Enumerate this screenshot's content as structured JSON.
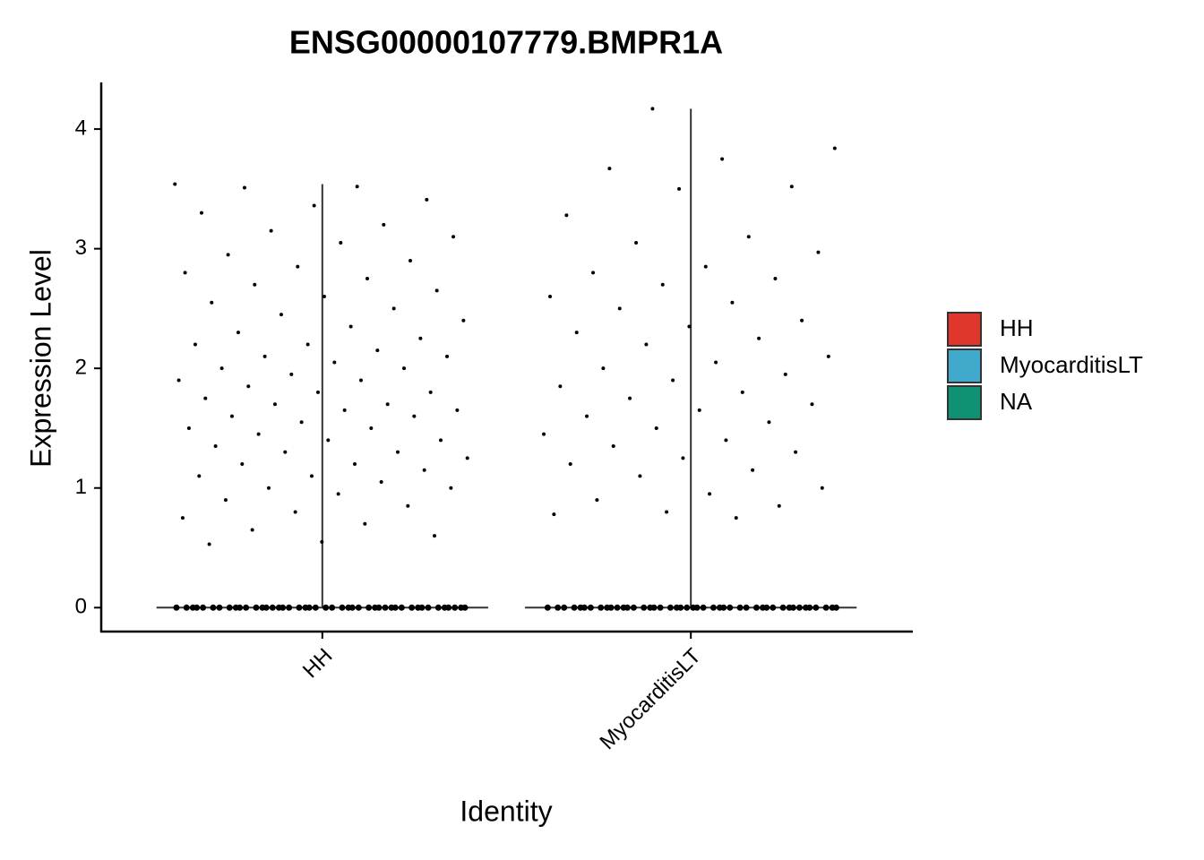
{
  "chart_data": {
    "type": "violin",
    "title": "ENSG00000107779.BMPR1A",
    "x_label": "Identity",
    "y_label": "Expression Level",
    "categories": [
      "HH",
      "MyocarditisLT"
    ],
    "groups": [
      {
        "name": "HH",
        "values": [
          3.54,
          3.52,
          3.51,
          3.41,
          3.36,
          3.3,
          3.2,
          3.15,
          3.1,
          3.05,
          2.95,
          2.9,
          2.85,
          2.8,
          2.75,
          2.7,
          2.65,
          2.6,
          2.55,
          2.5,
          2.45,
          2.4,
          2.35,
          2.3,
          2.25,
          2.2,
          2.2,
          2.15,
          2.1,
          2.1,
          2.05,
          2.0,
          2.0,
          1.95,
          1.9,
          1.9,
          1.85,
          1.8,
          1.8,
          1.75,
          1.7,
          1.7,
          1.65,
          1.65,
          1.6,
          1.6,
          1.55,
          1.5,
          1.5,
          1.45,
          1.4,
          1.4,
          1.35,
          1.3,
          1.3,
          1.25,
          1.2,
          1.2,
          1.15,
          1.1,
          1.1,
          1.05,
          1.0,
          1.0,
          0.95,
          0.9,
          0.85,
          0.8,
          0.75,
          0.7,
          0.65,
          0.6,
          0.55,
          0.53,
          0,
          0,
          0,
          0,
          0,
          0,
          0,
          0,
          0,
          0,
          0,
          0,
          0,
          0,
          0,
          0,
          0,
          0,
          0,
          0,
          0,
          0,
          0,
          0,
          0,
          0,
          0,
          0,
          0,
          0,
          0,
          0,
          0,
          0,
          0,
          0,
          0,
          0,
          0,
          0,
          0,
          0,
          0,
          0,
          0
        ]
      },
      {
        "name": "MyocarditisLT",
        "values": [
          4.17,
          3.84,
          3.75,
          3.67,
          3.52,
          3.5,
          3.28,
          3.1,
          3.05,
          2.97,
          2.85,
          2.8,
          2.75,
          2.7,
          2.6,
          2.55,
          2.5,
          2.4,
          2.35,
          2.3,
          2.25,
          2.2,
          2.1,
          2.05,
          2.0,
          1.95,
          1.9,
          1.85,
          1.8,
          1.75,
          1.7,
          1.65,
          1.6,
          1.55,
          1.5,
          1.45,
          1.4,
          1.35,
          1.3,
          1.25,
          1.2,
          1.15,
          1.1,
          1.0,
          0.95,
          0.9,
          0.85,
          0.8,
          0.78,
          0.75,
          0,
          0,
          0,
          0,
          0,
          0,
          0,
          0,
          0,
          0,
          0,
          0,
          0,
          0,
          0,
          0,
          0,
          0,
          0,
          0,
          0,
          0,
          0,
          0,
          0,
          0,
          0,
          0,
          0,
          0,
          0,
          0,
          0,
          0,
          0,
          0,
          0,
          0,
          0,
          0,
          0,
          0,
          0,
          0,
          0
        ]
      }
    ],
    "point_color": "#000000",
    "legend": [
      {
        "name": "HH",
        "color": "#e0362b"
      },
      {
        "name": "MyocarditisLT",
        "color": "#41a9cb"
      },
      {
        "name": "NA",
        "color": "#0f9274"
      }
    ],
    "legend_position": "right",
    "ylim": [
      -0.2,
      4.39
    ],
    "yticks": [
      0,
      1,
      2,
      3,
      4
    ]
  }
}
